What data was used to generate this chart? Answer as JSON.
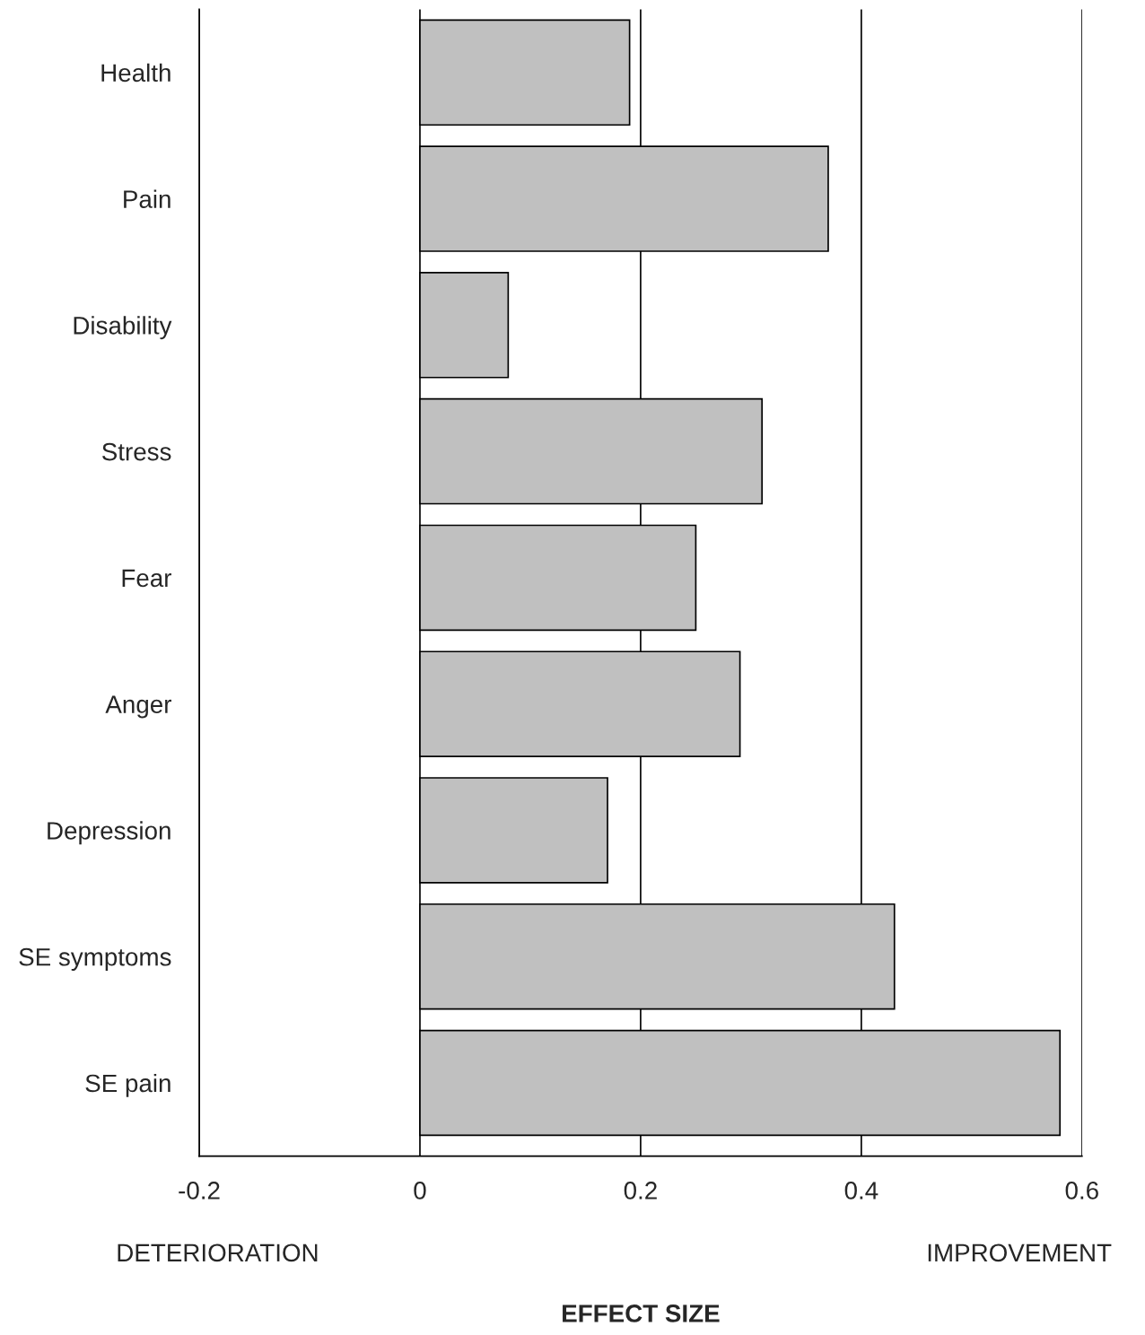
{
  "chart_data": {
    "type": "bar",
    "orientation": "horizontal",
    "xlabel": "EFFECT SIZE",
    "categories": [
      "Health",
      "Pain",
      "Disability",
      "Stress",
      "Fear",
      "Anger",
      "Depression",
      "SE symptoms",
      "SE pain"
    ],
    "values": [
      0.19,
      0.37,
      0.08,
      0.31,
      0.25,
      0.29,
      0.17,
      0.43,
      0.58
    ],
    "color": "#c0c0c0",
    "xlim": [
      -0.2,
      0.6
    ],
    "xticks": [
      -0.2,
      0,
      0.2,
      0.4,
      0.6
    ],
    "grid": "x",
    "annotations": [
      "DETERIORATION",
      "IMPROVEMENT"
    ]
  }
}
